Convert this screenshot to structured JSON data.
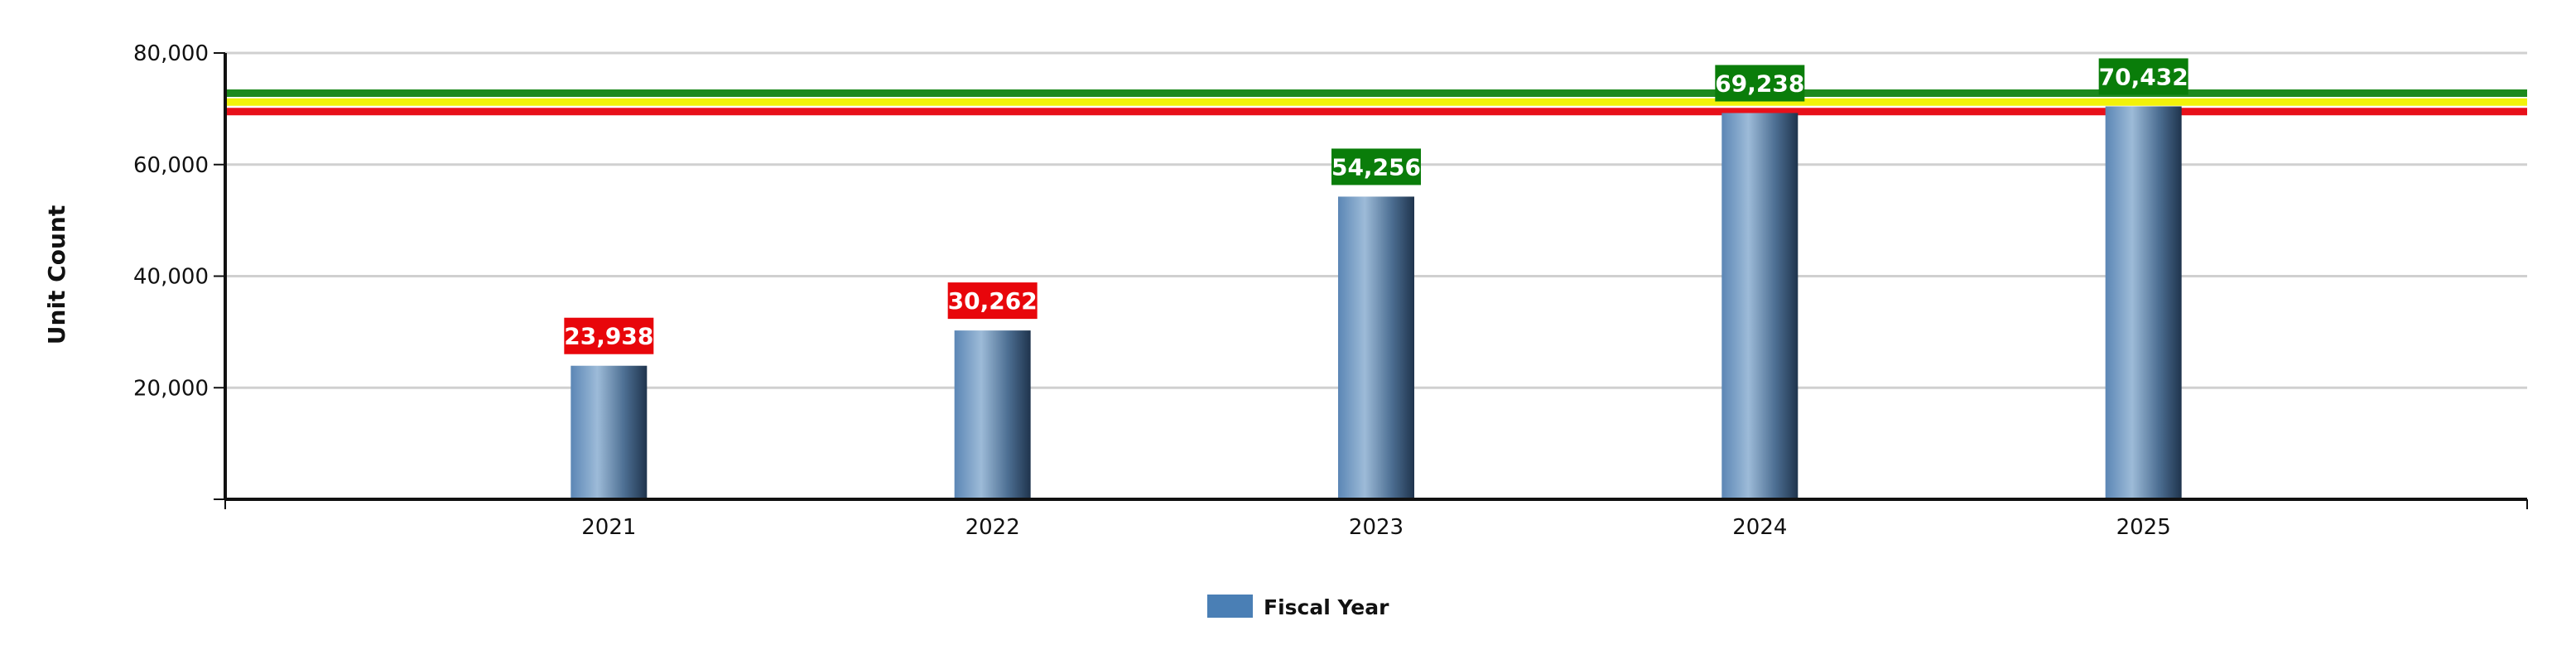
{
  "chart_data": {
    "type": "bar",
    "title": "",
    "xlabel": "",
    "ylabel": "Unit Count",
    "categories": [
      "2021",
      "2022",
      "2023",
      "2024",
      "2025"
    ],
    "series": [
      {
        "name": "Fiscal Year",
        "values": [
          23938,
          30262,
          54256,
          69238,
          70432
        ]
      }
    ],
    "data_labels": [
      "23,938",
      "30,262",
      "54,256",
      "69,238",
      "70,432"
    ],
    "label_colors": [
      "#e8060b",
      "#e8060b",
      "#0a7d0a",
      "#0a7d0a",
      "#0a7d0a"
    ],
    "ylim": [
      0,
      80000
    ],
    "yticks": [
      20000,
      40000,
      60000,
      80000
    ],
    "ytick_labels": [
      "20,000",
      "40,000",
      "60,000",
      "80,000"
    ],
    "threshold_lines": [
      {
        "value": 72800,
        "color": "#1e8a1e"
      },
      {
        "value": 71200,
        "color": "#f2f20a"
      },
      {
        "value": 69500,
        "color": "#e8101a"
      }
    ],
    "grid": true,
    "legend_position": "bottom-center",
    "bar_color": "#4a7fb5"
  }
}
